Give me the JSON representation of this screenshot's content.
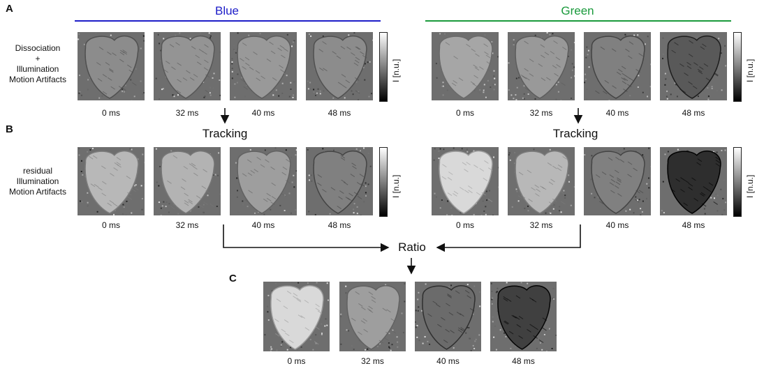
{
  "panels": {
    "a": "A",
    "b": "B",
    "c": "C"
  },
  "groups": {
    "blue": {
      "title": "Blue",
      "color": "#1c1cc8"
    },
    "green": {
      "title": "Green",
      "color": "#1a9a3c"
    }
  },
  "row_labels": {
    "a": [
      "Dissociation",
      "+",
      "Illumination",
      "Motion Artifacts"
    ],
    "b": [
      "residual",
      "Illumination",
      "Motion Artifacts"
    ]
  },
  "times": [
    "0 ms",
    "32 ms",
    "40 ms",
    "48 ms"
  ],
  "steps": {
    "tracking_blue": "Tracking",
    "tracking_green": "Tracking",
    "ratio": "Ratio"
  },
  "colorbar_label": "I [n.u.]",
  "frame_brightness": {
    "a_blue": [
      0.55,
      0.58,
      0.6,
      0.55
    ],
    "a_green": [
      0.65,
      0.6,
      0.5,
      0.35
    ],
    "b_blue": [
      0.72,
      0.7,
      0.62,
      0.5
    ],
    "b_green": [
      0.85,
      0.72,
      0.5,
      0.18
    ],
    "c": [
      0.85,
      0.62,
      0.42,
      0.25
    ]
  }
}
